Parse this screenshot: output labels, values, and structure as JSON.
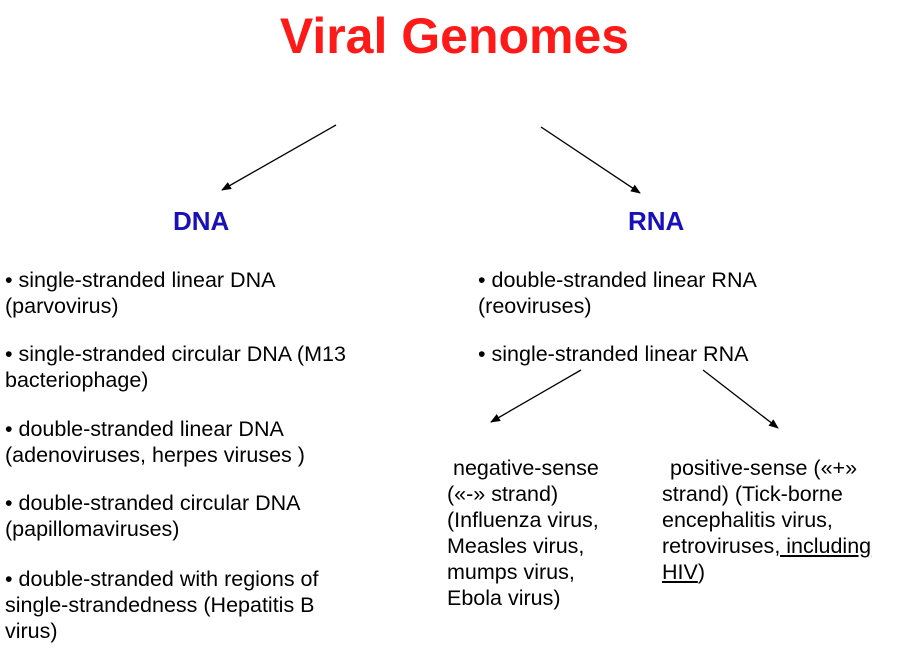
{
  "title": "Viral Genomes",
  "dna": {
    "heading": "DNA",
    "items": [
      {
        "l1": "• single-stranded linear DNA",
        "l2": "(parvovirus)"
      },
      {
        "l1": "• single-stranded circular DNA (M13",
        "l2": "bacteriophage)"
      },
      {
        "l1": "• double-stranded linear DNA",
        "l2": "(adenoviruses, herpes viruses )"
      },
      {
        "l1": "• double-stranded circular DNA",
        "l2": "(papillomaviruses)"
      },
      {
        "l1": "• double-stranded with regions of",
        "l2": "single-strandedness (Hepatitis B",
        "l3": "virus)"
      }
    ]
  },
  "rna": {
    "heading": "RNA",
    "items": [
      {
        "l1": "• double-stranded linear RNA",
        "l2": "(reoviruses)"
      },
      {
        "l1": "• single-stranded linear RNA"
      }
    ],
    "negative": [
      "negative-sense",
      "(«-» strand)",
      "(Influenza virus,",
      "Measles virus,",
      "mumps virus,",
      "Ebola virus)"
    ],
    "positive": {
      "l1": "positive-sense («+»",
      "l2": "strand) (Tick-borne",
      "l3": "encephalitis virus,",
      "l4a": "retroviruses",
      "l4b": ", including",
      "l5a": "HIV",
      "l5b": ")"
    }
  }
}
